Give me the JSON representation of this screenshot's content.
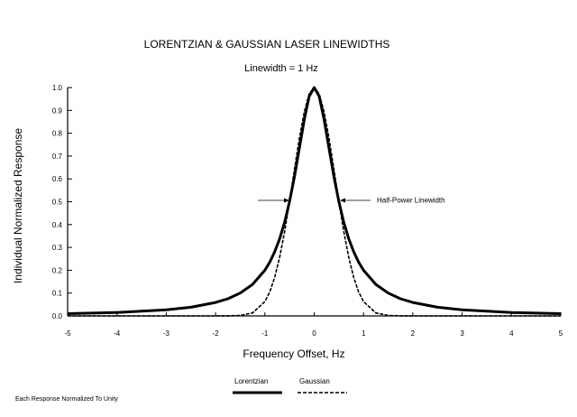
{
  "chart_data": {
    "type": "line",
    "title": "LORENTZIAN & GAUSSIAN LASER LINEWIDTHS",
    "subtitle": "Linewidth = 1 Hz",
    "xlabel": "Frequency Offset, Hz",
    "ylabel": "Individual Normalized Response",
    "xlim": [
      -5,
      5
    ],
    "ylim": [
      0,
      1
    ],
    "x_ticks": [
      "-5",
      "-4",
      "-3",
      "-2",
      "-1",
      "0",
      "1",
      "2",
      "3",
      "4",
      "5"
    ],
    "y_ticks": [
      "0.0",
      "0.1",
      "0.2",
      "0.3",
      "0.4",
      "0.5",
      "0.6",
      "0.7",
      "0.8",
      "0.9",
      "1.0"
    ],
    "grid": false,
    "legend_position": "bottom-center",
    "series": [
      {
        "name": "Lorentzian",
        "style": "solid",
        "x": [
          -5,
          -4,
          -3,
          -2.5,
          -2,
          -1.75,
          -1.5,
          -1.25,
          -1,
          -0.9,
          -0.8,
          -0.7,
          -0.6,
          -0.5,
          -0.4,
          -0.3,
          -0.2,
          -0.1,
          0,
          0.1,
          0.2,
          0.3,
          0.4,
          0.5,
          0.6,
          0.7,
          0.8,
          0.9,
          1,
          1.25,
          1.5,
          1.75,
          2,
          2.5,
          3,
          4,
          5
        ],
        "y": [
          0.01,
          0.015,
          0.027,
          0.038,
          0.059,
          0.075,
          0.1,
          0.138,
          0.2,
          0.236,
          0.281,
          0.338,
          0.41,
          0.5,
          0.61,
          0.735,
          0.862,
          0.962,
          1.0,
          0.962,
          0.862,
          0.735,
          0.61,
          0.5,
          0.41,
          0.338,
          0.281,
          0.236,
          0.2,
          0.138,
          0.1,
          0.075,
          0.059,
          0.038,
          0.027,
          0.015,
          0.01
        ]
      },
      {
        "name": "Gaussian",
        "style": "dashed",
        "x": [
          -5,
          -2,
          -1.75,
          -1.5,
          -1.25,
          -1,
          -0.9,
          -0.8,
          -0.7,
          -0.6,
          -0.5,
          -0.4,
          -0.3,
          -0.2,
          -0.1,
          0,
          0.1,
          0.2,
          0.3,
          0.4,
          0.5,
          0.6,
          0.7,
          0.8,
          0.9,
          1,
          1.25,
          1.5,
          1.75,
          2,
          5
        ],
        "y": [
          0,
          0,
          0.0002,
          0.002,
          0.013,
          0.063,
          0.106,
          0.169,
          0.257,
          0.369,
          0.5,
          0.641,
          0.779,
          0.895,
          0.973,
          1.0,
          0.973,
          0.895,
          0.779,
          0.641,
          0.5,
          0.369,
          0.257,
          0.169,
          0.106,
          0.063,
          0.013,
          0.002,
          0.0002,
          0,
          0
        ]
      }
    ],
    "annotations": [
      {
        "text": "Half-Power Linewidth",
        "x": 0.5,
        "y": 0.5
      }
    ]
  },
  "footnote": "Each Response Normalized To Unity"
}
